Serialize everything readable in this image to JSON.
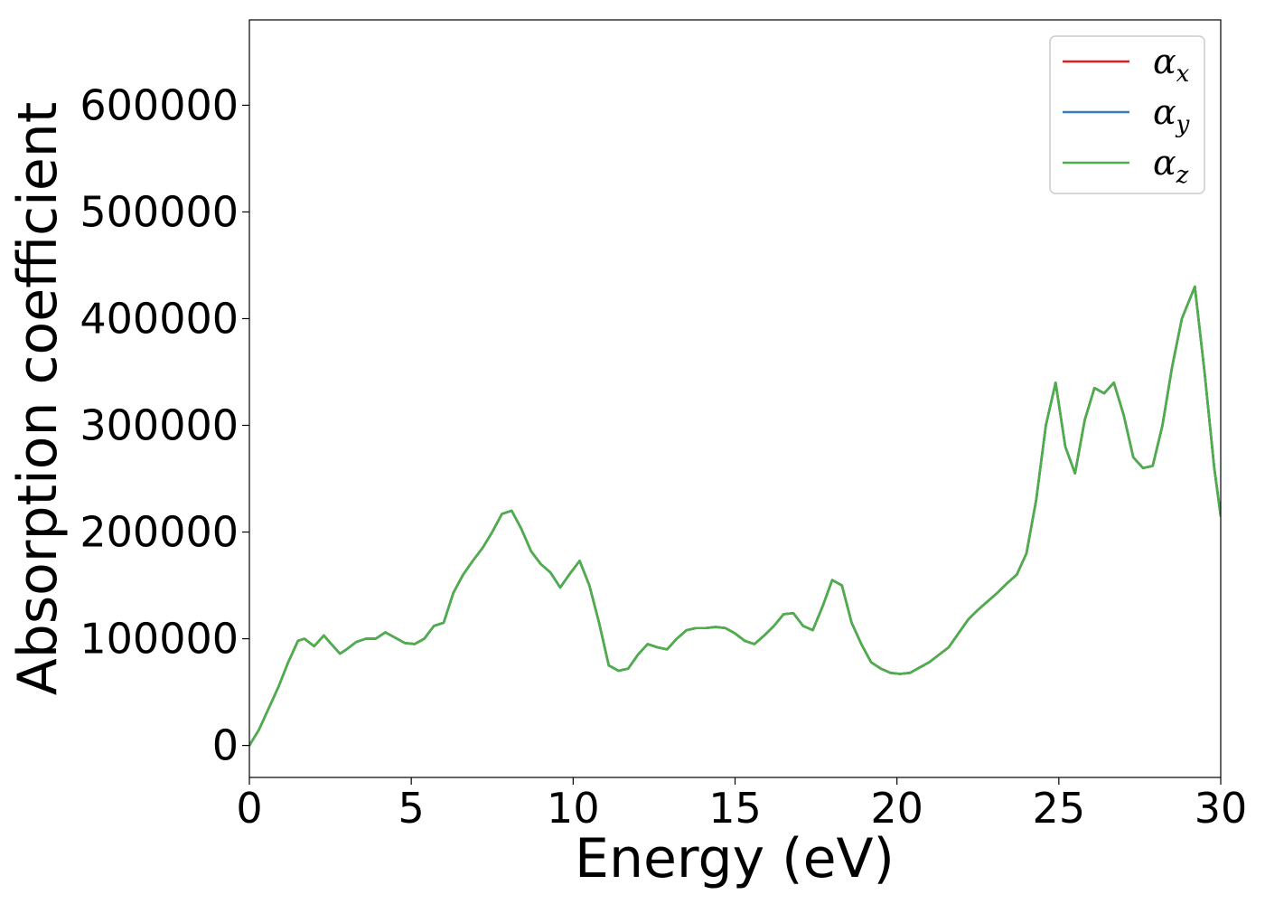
{
  "chart_data": {
    "type": "line",
    "xlabel": "Energy (eV)",
    "ylabel": "Absorption coefficient",
    "xlim": [
      0,
      30
    ],
    "ylim": [
      -30000,
      680000
    ],
    "xticks": [
      0,
      5,
      10,
      15,
      20,
      25,
      30
    ],
    "yticks": [
      0,
      100000,
      200000,
      300000,
      400000,
      500000,
      600000
    ],
    "grid": false,
    "legend_position": "top-right",
    "x": [
      0.0,
      0.3,
      0.6,
      0.9,
      1.2,
      1.5,
      1.7,
      2.0,
      2.3,
      2.5,
      2.8,
      3.0,
      3.3,
      3.6,
      3.9,
      4.2,
      4.5,
      4.8,
      5.1,
      5.4,
      5.7,
      6.0,
      6.3,
      6.6,
      6.9,
      7.2,
      7.5,
      7.8,
      8.1,
      8.4,
      8.7,
      9.0,
      9.3,
      9.6,
      9.9,
      10.2,
      10.5,
      10.8,
      11.1,
      11.4,
      11.7,
      12.0,
      12.3,
      12.6,
      12.9,
      13.2,
      13.5,
      13.8,
      14.1,
      14.4,
      14.7,
      15.0,
      15.3,
      15.6,
      15.9,
      16.2,
      16.5,
      16.8,
      17.1,
      17.4,
      17.7,
      18.0,
      18.3,
      18.6,
      18.9,
      19.2,
      19.5,
      19.8,
      20.1,
      20.4,
      20.7,
      21.0,
      21.3,
      21.6,
      21.9,
      22.2,
      22.5,
      22.8,
      23.1,
      23.4,
      23.7,
      24.0,
      24.3,
      24.6,
      24.9,
      25.2,
      25.5,
      25.8,
      26.1,
      26.4,
      26.7,
      27.0,
      27.3,
      27.6,
      27.9,
      28.2,
      28.5,
      28.8,
      29.2,
      29.5,
      29.8,
      30.0
    ],
    "series": [
      {
        "name": "α",
        "sub": "x",
        "color": "#e41a1c",
        "values": [
          0,
          15000,
          35000,
          55000,
          78000,
          98000,
          100000,
          93000,
          103000,
          96000,
          86000,
          90000,
          97000,
          100000,
          100000,
          106000,
          101000,
          96000,
          95000,
          100000,
          112000,
          115000,
          143000,
          160000,
          173000,
          185000,
          200000,
          217000,
          220000,
          203000,
          182000,
          170000,
          162000,
          148000,
          161000,
          173000,
          150000,
          115000,
          75000,
          70000,
          72000,
          85000,
          95000,
          92000,
          90000,
          100000,
          108000,
          110000,
          110000,
          111000,
          110000,
          105000,
          98000,
          95000,
          103000,
          112000,
          123000,
          124000,
          112000,
          108000,
          130000,
          155000,
          150000,
          115000,
          95000,
          78000,
          72000,
          68000,
          67000,
          68000,
          73000,
          78000,
          85000,
          92000,
          105000,
          118000,
          127000,
          135000,
          143000,
          152000,
          160000,
          180000,
          230000,
          300000,
          340000,
          280000,
          255000,
          305000,
          335000,
          330000,
          340000,
          310000,
          270000,
          260000,
          262000,
          300000,
          355000,
          400000,
          430000,
          350000,
          260000,
          215000
        ]
      },
      {
        "name": "α",
        "sub": "y",
        "color": "#377eb8",
        "values": [
          0,
          15000,
          35000,
          55000,
          78000,
          98000,
          100000,
          93000,
          103000,
          96000,
          86000,
          90000,
          97000,
          100000,
          100000,
          106000,
          101000,
          96000,
          95000,
          100000,
          112000,
          115000,
          143000,
          160000,
          173000,
          185000,
          200000,
          217000,
          220000,
          203000,
          182000,
          170000,
          162000,
          148000,
          161000,
          173000,
          150000,
          115000,
          75000,
          70000,
          72000,
          85000,
          95000,
          92000,
          90000,
          100000,
          108000,
          110000,
          110000,
          111000,
          110000,
          105000,
          98000,
          95000,
          103000,
          112000,
          123000,
          124000,
          112000,
          108000,
          130000,
          155000,
          150000,
          115000,
          95000,
          78000,
          72000,
          68000,
          67000,
          68000,
          73000,
          78000,
          85000,
          92000,
          105000,
          118000,
          127000,
          135000,
          143000,
          152000,
          160000,
          180000,
          230000,
          300000,
          340000,
          280000,
          255000,
          305000,
          335000,
          330000,
          340000,
          310000,
          270000,
          260000,
          262000,
          300000,
          355000,
          400000,
          430000,
          350000,
          260000,
          215000
        ]
      },
      {
        "name": "α",
        "sub": "z",
        "color": "#4daf4a",
        "values": [
          0,
          15000,
          35000,
          55000,
          78000,
          98000,
          100000,
          93000,
          103000,
          96000,
          86000,
          90000,
          97000,
          100000,
          100000,
          106000,
          101000,
          96000,
          95000,
          100000,
          112000,
          115000,
          143000,
          160000,
          173000,
          185000,
          200000,
          217000,
          220000,
          203000,
          182000,
          170000,
          162000,
          148000,
          161000,
          173000,
          150000,
          115000,
          75000,
          70000,
          72000,
          85000,
          95000,
          92000,
          90000,
          100000,
          108000,
          110000,
          110000,
          111000,
          110000,
          105000,
          98000,
          95000,
          103000,
          112000,
          123000,
          124000,
          112000,
          108000,
          130000,
          155000,
          150000,
          115000,
          95000,
          78000,
          72000,
          68000,
          67000,
          68000,
          73000,
          78000,
          85000,
          92000,
          105000,
          118000,
          127000,
          135000,
          143000,
          152000,
          160000,
          180000,
          230000,
          300000,
          340000,
          280000,
          255000,
          305000,
          335000,
          330000,
          340000,
          310000,
          270000,
          260000,
          262000,
          300000,
          355000,
          400000,
          430000,
          350000,
          260000,
          215000
        ]
      }
    ]
  }
}
